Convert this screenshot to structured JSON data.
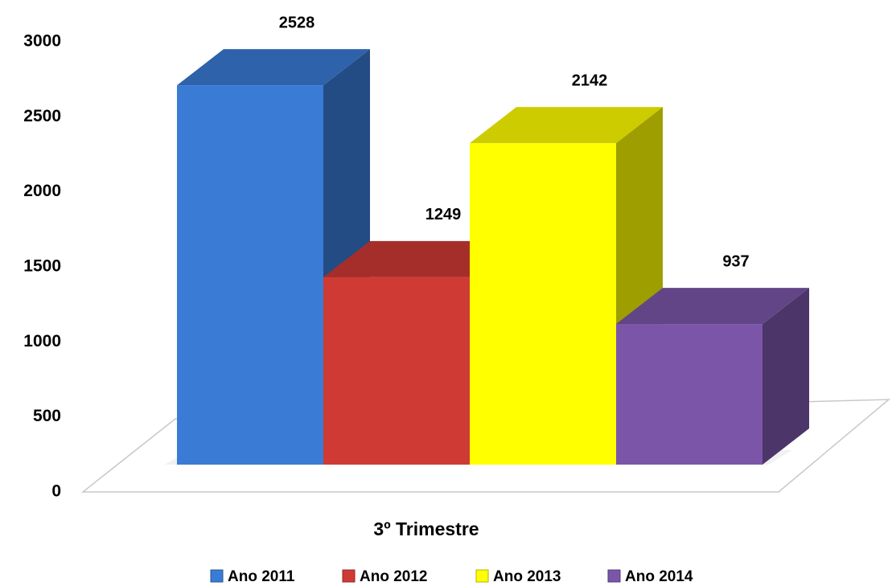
{
  "chart_data": {
    "type": "bar",
    "categories": [
      "3º Trimestre"
    ],
    "series": [
      {
        "name": "Ano 2011",
        "color": "#3a7bd5",
        "values": [
          2528
        ]
      },
      {
        "name": "Ano 2012",
        "color": "#d03a35",
        "values": [
          1249
        ]
      },
      {
        "name": "Ano 2013",
        "color": "#ffff00",
        "values": [
          2142
        ]
      },
      {
        "name": "Ano 2014",
        "color": "#7b56a8",
        "values": [
          937
        ]
      }
    ],
    "ylim": [
      0,
      3000
    ],
    "yticks": [
      0,
      500,
      1000,
      1500,
      2000,
      2500,
      3000
    ],
    "grid": false
  }
}
